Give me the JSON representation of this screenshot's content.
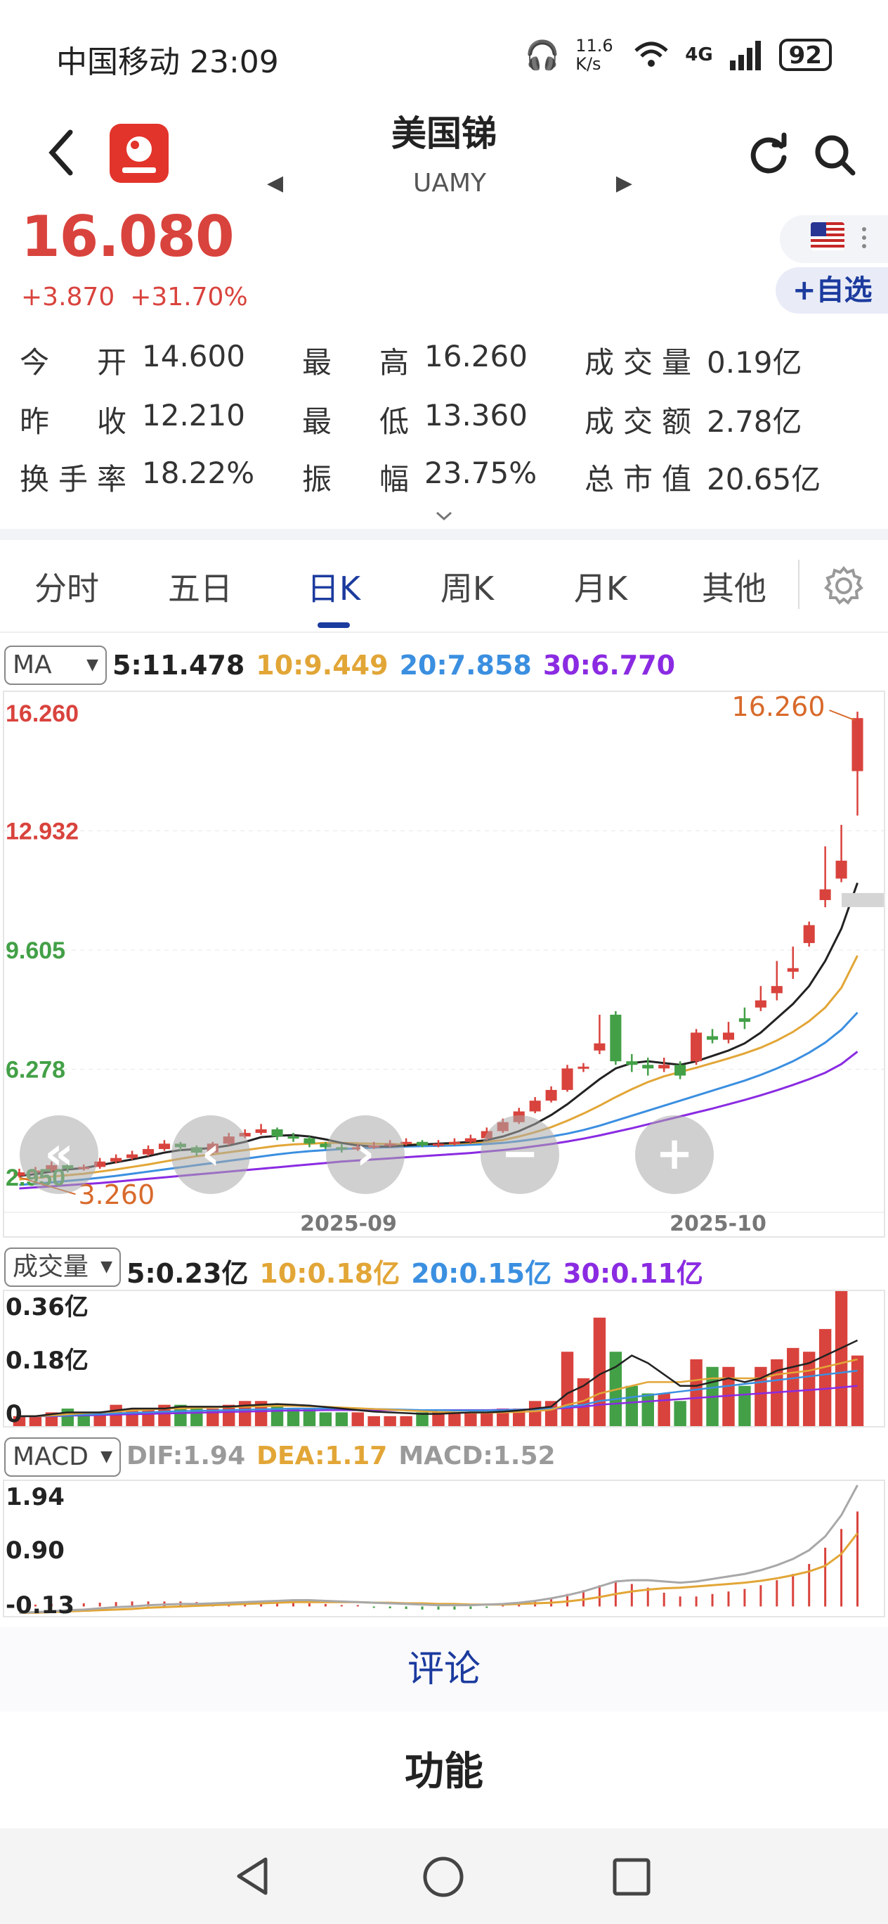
{
  "status_bar": {
    "carrier_time": "中国移动 23:09",
    "speed": "11.6 K/s",
    "network": "4G",
    "battery": "92"
  },
  "header": {
    "title": "美国锑",
    "ticker": "UAMY"
  },
  "price": {
    "last": "16.080",
    "change": "+3.870",
    "change_pct": "+31.70%",
    "watchlist_label": "+自选"
  },
  "quote": [
    [
      {
        "label": "今开",
        "value": "14.600"
      },
      {
        "label": "最高",
        "value": "16.260"
      },
      {
        "label": "成交量",
        "value": "0.19亿"
      }
    ],
    [
      {
        "label": "昨收",
        "value": "12.210"
      },
      {
        "label": "最低",
        "value": "13.360"
      },
      {
        "label": "成交额",
        "value": "2.78亿"
      }
    ],
    [
      {
        "label": "换手率",
        "value": "18.22%"
      },
      {
        "label": "振幅",
        "value": "23.75%"
      },
      {
        "label": "总市值",
        "value": "20.65亿"
      }
    ]
  ],
  "tabs": [
    "分时",
    "五日",
    "日K",
    "周K",
    "月K",
    "其他"
  ],
  "active_tab": "日K",
  "ma_legend": {
    "select": "MA",
    "ma5": "5:11.478",
    "ma10": "10:9.449",
    "ma20": "20:7.858",
    "ma30": "30:6.770"
  },
  "main_axis": {
    "y_labels": [
      "16.260",
      "12.932",
      "9.605",
      "6.278",
      "2.950"
    ],
    "x_labels": [
      "2025-09",
      "2025-10"
    ],
    "high_marker": "16.260",
    "low_marker": "3.260"
  },
  "volume_legend": {
    "select": "成交量",
    "ma5": "5:0.23亿",
    "ma10": "10:0.18亿",
    "ma20": "20:0.15亿",
    "ma30": "30:0.11亿"
  },
  "volume_axis": [
    "0.36亿",
    "0.18亿",
    "0"
  ],
  "macd_legend": {
    "select": "MACD",
    "dif": "DIF:1.94",
    "dea": "DEA:1.17",
    "macd": "MACD:1.52"
  },
  "macd_axis": [
    "1.94",
    "0.90",
    "-0.13"
  ],
  "footer": {
    "comment": "评论",
    "function": "功能"
  },
  "colors": {
    "up": "#d9433d",
    "down": "#43a047",
    "ma5": "#222222",
    "ma10": "#e2a637",
    "ma20": "#3b8fe0",
    "ma30": "#8a2be2",
    "accent": "#1c3b9e"
  },
  "chart_data": {
    "type": "candlestick",
    "ylim": [
      2.95,
      16.26
    ],
    "candles": [
      {
        "o": 3.3,
        "c": 3.4,
        "h": 3.5,
        "l": 3.26
      },
      {
        "o": 3.4,
        "c": 3.45,
        "h": 3.55,
        "l": 3.3
      },
      {
        "o": 3.45,
        "c": 3.6,
        "h": 3.7,
        "l": 3.4
      },
      {
        "o": 3.6,
        "c": 3.5,
        "h": 3.65,
        "l": 3.4
      },
      {
        "o": 3.5,
        "c": 3.55,
        "h": 3.62,
        "l": 3.45
      },
      {
        "o": 3.55,
        "c": 3.7,
        "h": 3.8,
        "l": 3.5
      },
      {
        "o": 3.7,
        "c": 3.8,
        "h": 3.9,
        "l": 3.65
      },
      {
        "o": 3.8,
        "c": 3.9,
        "h": 4.0,
        "l": 3.75
      },
      {
        "o": 3.9,
        "c": 4.05,
        "h": 4.15,
        "l": 3.85
      },
      {
        "o": 4.05,
        "c": 4.2,
        "h": 4.3,
        "l": 4.0
      },
      {
        "o": 4.2,
        "c": 4.1,
        "h": 4.25,
        "l": 4.0
      },
      {
        "o": 4.1,
        "c": 3.95,
        "h": 4.15,
        "l": 3.85
      },
      {
        "o": 3.95,
        "c": 4.2,
        "h": 4.25,
        "l": 3.9
      },
      {
        "o": 4.2,
        "c": 4.4,
        "h": 4.5,
        "l": 4.15
      },
      {
        "o": 4.4,
        "c": 4.5,
        "h": 4.6,
        "l": 4.35
      },
      {
        "o": 4.5,
        "c": 4.6,
        "h": 4.75,
        "l": 4.45
      },
      {
        "o": 4.6,
        "c": 4.4,
        "h": 4.65,
        "l": 4.3
      },
      {
        "o": 4.4,
        "c": 4.35,
        "h": 4.5,
        "l": 4.25
      },
      {
        "o": 4.35,
        "c": 4.2,
        "h": 4.4,
        "l": 4.1
      },
      {
        "o": 4.2,
        "c": 4.1,
        "h": 4.25,
        "l": 4.05
      },
      {
        "o": 4.1,
        "c": 4.05,
        "h": 4.2,
        "l": 3.95
      },
      {
        "o": 4.05,
        "c": 4.1,
        "h": 4.2,
        "l": 4.0
      },
      {
        "o": 4.1,
        "c": 4.15,
        "h": 4.25,
        "l": 4.05
      },
      {
        "o": 4.15,
        "c": 4.2,
        "h": 4.3,
        "l": 4.1
      },
      {
        "o": 4.2,
        "c": 4.25,
        "h": 4.35,
        "l": 4.15
      },
      {
        "o": 4.25,
        "c": 4.15,
        "h": 4.3,
        "l": 4.1
      },
      {
        "o": 4.15,
        "c": 4.2,
        "h": 4.3,
        "l": 4.1
      },
      {
        "o": 4.2,
        "c": 4.25,
        "h": 4.35,
        "l": 4.15
      },
      {
        "o": 4.25,
        "c": 4.35,
        "h": 4.45,
        "l": 4.2
      },
      {
        "o": 4.35,
        "c": 4.55,
        "h": 4.65,
        "l": 4.3
      },
      {
        "o": 4.55,
        "c": 4.8,
        "h": 4.9,
        "l": 4.5
      },
      {
        "o": 4.8,
        "c": 5.1,
        "h": 5.2,
        "l": 4.75
      },
      {
        "o": 5.1,
        "c": 5.4,
        "h": 5.5,
        "l": 5.05
      },
      {
        "o": 5.4,
        "c": 5.7,
        "h": 5.8,
        "l": 5.35
      },
      {
        "o": 5.7,
        "c": 6.3,
        "h": 6.4,
        "l": 5.65
      },
      {
        "o": 6.3,
        "c": 6.35,
        "h": 6.45,
        "l": 6.2
      },
      {
        "o": 6.8,
        "c": 7.0,
        "h": 7.8,
        "l": 6.7
      },
      {
        "o": 7.8,
        "c": 6.5,
        "h": 7.9,
        "l": 6.4
      },
      {
        "o": 6.5,
        "c": 6.4,
        "h": 6.7,
        "l": 6.2
      },
      {
        "o": 6.4,
        "c": 6.3,
        "h": 6.6,
        "l": 6.1
      },
      {
        "o": 6.3,
        "c": 6.4,
        "h": 6.6,
        "l": 6.2
      },
      {
        "o": 6.4,
        "c": 6.1,
        "h": 6.5,
        "l": 6.0
      },
      {
        "o": 6.5,
        "c": 7.3,
        "h": 7.4,
        "l": 6.4
      },
      {
        "o": 7.2,
        "c": 7.1,
        "h": 7.4,
        "l": 7.0
      },
      {
        "o": 7.1,
        "c": 7.3,
        "h": 7.6,
        "l": 7.0
      },
      {
        "o": 7.7,
        "c": 7.6,
        "h": 8.0,
        "l": 7.4
      },
      {
        "o": 8.0,
        "c": 8.2,
        "h": 8.6,
        "l": 7.9
      },
      {
        "o": 8.4,
        "c": 8.6,
        "h": 9.3,
        "l": 8.2
      },
      {
        "o": 9.0,
        "c": 9.1,
        "h": 9.7,
        "l": 8.8
      },
      {
        "o": 9.8,
        "c": 10.3,
        "h": 10.4,
        "l": 9.7
      },
      {
        "o": 11.0,
        "c": 11.3,
        "h": 12.5,
        "l": 10.8
      },
      {
        "o": 11.6,
        "c": 12.1,
        "h": 13.1,
        "l": 11.5
      },
      {
        "o": 14.6,
        "c": 16.08,
        "h": 16.26,
        "l": 13.36
      }
    ],
    "ma5": [
      3.3,
      3.35,
      3.42,
      3.48,
      3.52,
      3.6,
      3.68,
      3.76,
      3.85,
      3.95,
      4.02,
      4.05,
      4.08,
      4.15,
      4.25,
      4.38,
      4.42,
      4.44,
      4.4,
      4.32,
      4.22,
      4.15,
      4.12,
      4.12,
      4.15,
      4.18,
      4.2,
      4.22,
      4.25,
      4.3,
      4.4,
      4.55,
      4.75,
      5.0,
      5.3,
      5.65,
      6.0,
      6.3,
      6.45,
      6.5,
      6.45,
      6.4,
      6.5,
      6.65,
      6.8,
      7.0,
      7.3,
      7.7,
      8.1,
      8.6,
      9.3,
      10.2,
      11.48
    ],
    "ma10": [
      3.2,
      3.24,
      3.28,
      3.32,
      3.36,
      3.42,
      3.48,
      3.55,
      3.62,
      3.7,
      3.78,
      3.85,
      3.9,
      3.96,
      4.02,
      4.08,
      4.14,
      4.18,
      4.2,
      4.22,
      4.22,
      4.21,
      4.2,
      4.19,
      4.18,
      4.18,
      4.19,
      4.2,
      4.22,
      4.25,
      4.3,
      4.4,
      4.52,
      4.66,
      4.84,
      5.04,
      5.26,
      5.5,
      5.72,
      5.92,
      6.08,
      6.2,
      6.32,
      6.45,
      6.58,
      6.72,
      6.88,
      7.08,
      7.32,
      7.62,
      8.0,
      8.55,
      9.45
    ],
    "ma20": [
      3.05,
      3.08,
      3.12,
      3.16,
      3.2,
      3.25,
      3.3,
      3.36,
      3.42,
      3.48,
      3.54,
      3.6,
      3.66,
      3.72,
      3.78,
      3.84,
      3.9,
      3.95,
      3.99,
      4.02,
      4.05,
      4.07,
      4.09,
      4.1,
      4.12,
      4.13,
      4.14,
      4.15,
      4.17,
      4.19,
      4.22,
      4.27,
      4.33,
      4.4,
      4.48,
      4.58,
      4.7,
      4.84,
      4.98,
      5.12,
      5.26,
      5.4,
      5.54,
      5.68,
      5.82,
      5.96,
      6.12,
      6.3,
      6.5,
      6.74,
      7.02,
      7.38,
      7.86
    ],
    "ma30": [
      2.95,
      2.98,
      3.01,
      3.04,
      3.07,
      3.1,
      3.14,
      3.18,
      3.22,
      3.26,
      3.3,
      3.34,
      3.38,
      3.42,
      3.46,
      3.5,
      3.54,
      3.58,
      3.62,
      3.66,
      3.7,
      3.73,
      3.76,
      3.79,
      3.82,
      3.85,
      3.88,
      3.91,
      3.94,
      3.98,
      4.02,
      4.07,
      4.13,
      4.19,
      4.26,
      4.34,
      4.43,
      4.53,
      4.63,
      4.74,
      4.85,
      4.96,
      5.07,
      5.18,
      5.3,
      5.42,
      5.55,
      5.69,
      5.84,
      6.0,
      6.18,
      6.42,
      6.77
    ],
    "volume": {
      "ylim": [
        0,
        0.36
      ],
      "values": [
        0.03,
        0.03,
        0.04,
        0.05,
        0.04,
        0.04,
        0.06,
        0.05,
        0.05,
        0.06,
        0.06,
        0.05,
        0.05,
        0.06,
        0.07,
        0.07,
        0.06,
        0.05,
        0.05,
        0.04,
        0.04,
        0.04,
        0.03,
        0.03,
        0.03,
        0.04,
        0.04,
        0.04,
        0.04,
        0.04,
        0.05,
        0.05,
        0.07,
        0.07,
        0.2,
        0.13,
        0.29,
        0.2,
        0.11,
        0.09,
        0.09,
        0.07,
        0.18,
        0.16,
        0.16,
        0.11,
        0.16,
        0.18,
        0.21,
        0.2,
        0.26,
        0.36,
        0.19
      ],
      "up": [
        true,
        true,
        true,
        false,
        false,
        true,
        true,
        true,
        true,
        true,
        false,
        false,
        true,
        true,
        true,
        true,
        false,
        false,
        false,
        false,
        false,
        true,
        true,
        true,
        true,
        false,
        true,
        true,
        true,
        true,
        true,
        true,
        true,
        true,
        true,
        true,
        true,
        false,
        false,
        false,
        true,
        false,
        true,
        false,
        true,
        false,
        true,
        true,
        true,
        true,
        true,
        true,
        true
      ],
      "ma5": [
        0.03,
        0.03,
        0.035,
        0.04,
        0.04,
        0.04,
        0.045,
        0.05,
        0.05,
        0.05,
        0.055,
        0.055,
        0.055,
        0.055,
        0.058,
        0.06,
        0.062,
        0.06,
        0.058,
        0.054,
        0.05,
        0.046,
        0.042,
        0.04,
        0.038,
        0.036,
        0.036,
        0.038,
        0.04,
        0.04,
        0.042,
        0.045,
        0.05,
        0.055,
        0.09,
        0.11,
        0.14,
        0.16,
        0.19,
        0.17,
        0.14,
        0.11,
        0.11,
        0.12,
        0.13,
        0.12,
        0.13,
        0.15,
        0.16,
        0.17,
        0.19,
        0.21,
        0.23
      ],
      "ma10": [
        0.03,
        0.03,
        0.032,
        0.035,
        0.038,
        0.04,
        0.042,
        0.045,
        0.047,
        0.05,
        0.05,
        0.052,
        0.053,
        0.054,
        0.055,
        0.056,
        0.057,
        0.057,
        0.056,
        0.055,
        0.053,
        0.051,
        0.049,
        0.047,
        0.045,
        0.043,
        0.041,
        0.04,
        0.039,
        0.039,
        0.04,
        0.041,
        0.043,
        0.047,
        0.06,
        0.07,
        0.09,
        0.1,
        0.11,
        0.12,
        0.12,
        0.12,
        0.125,
        0.13,
        0.13,
        0.13,
        0.13,
        0.14,
        0.145,
        0.15,
        0.16,
        0.17,
        0.18
      ],
      "ma20": [
        0.03,
        0.03,
        0.031,
        0.032,
        0.034,
        0.035,
        0.037,
        0.039,
        0.04,
        0.042,
        0.043,
        0.044,
        0.045,
        0.046,
        0.047,
        0.048,
        0.049,
        0.05,
        0.05,
        0.05,
        0.05,
        0.05,
        0.049,
        0.048,
        0.047,
        0.046,
        0.046,
        0.045,
        0.045,
        0.045,
        0.046,
        0.047,
        0.048,
        0.05,
        0.055,
        0.06,
        0.07,
        0.075,
        0.08,
        0.085,
        0.09,
        0.095,
        0.1,
        0.105,
        0.11,
        0.115,
        0.12,
        0.125,
        0.13,
        0.135,
        0.14,
        0.145,
        0.15
      ],
      "ma30": [
        0.03,
        0.03,
        0.03,
        0.031,
        0.032,
        0.033,
        0.034,
        0.035,
        0.036,
        0.037,
        0.038,
        0.039,
        0.04,
        0.041,
        0.042,
        0.043,
        0.044,
        0.045,
        0.045,
        0.046,
        0.046,
        0.046,
        0.046,
        0.046,
        0.046,
        0.046,
        0.046,
        0.046,
        0.046,
        0.046,
        0.047,
        0.047,
        0.048,
        0.049,
        0.052,
        0.055,
        0.06,
        0.063,
        0.066,
        0.069,
        0.072,
        0.075,
        0.078,
        0.081,
        0.084,
        0.087,
        0.09,
        0.093,
        0.096,
        0.099,
        0.102,
        0.106,
        0.11
      ]
    },
    "macd": {
      "ylim": [
        -0.13,
        1.94
      ],
      "dif": [
        -0.1,
        -0.09,
        -0.08,
        -0.06,
        -0.05,
        -0.03,
        -0.01,
        0.0,
        0.02,
        0.03,
        0.04,
        0.04,
        0.05,
        0.06,
        0.07,
        0.08,
        0.09,
        0.1,
        0.1,
        0.09,
        0.08,
        0.07,
        0.06,
        0.05,
        0.04,
        0.03,
        0.02,
        0.02,
        0.02,
        0.03,
        0.04,
        0.06,
        0.09,
        0.13,
        0.18,
        0.24,
        0.32,
        0.4,
        0.42,
        0.42,
        0.4,
        0.38,
        0.4,
        0.44,
        0.48,
        0.52,
        0.58,
        0.66,
        0.76,
        0.9,
        1.12,
        1.46,
        1.94
      ],
      "dea": [
        -0.1,
        -0.1,
        -0.09,
        -0.08,
        -0.07,
        -0.06,
        -0.05,
        -0.04,
        -0.02,
        -0.01,
        0.0,
        0.01,
        0.02,
        0.03,
        0.04,
        0.05,
        0.06,
        0.07,
        0.07,
        0.07,
        0.07,
        0.07,
        0.06,
        0.06,
        0.05,
        0.05,
        0.04,
        0.04,
        0.03,
        0.03,
        0.03,
        0.04,
        0.05,
        0.06,
        0.08,
        0.11,
        0.15,
        0.2,
        0.24,
        0.27,
        0.29,
        0.3,
        0.32,
        0.34,
        0.36,
        0.38,
        0.41,
        0.45,
        0.5,
        0.56,
        0.65,
        0.84,
        1.17
      ],
      "hist": [
        0.02,
        0.03,
        0.04,
        0.05,
        0.05,
        0.06,
        0.07,
        0.08,
        0.08,
        0.08,
        0.08,
        0.07,
        0.06,
        0.06,
        0.06,
        0.06,
        0.06,
        0.06,
        0.05,
        0.04,
        0.02,
        0.0,
        -0.02,
        -0.03,
        -0.04,
        -0.05,
        -0.05,
        -0.05,
        -0.04,
        -0.02,
        0.01,
        0.04,
        0.08,
        0.14,
        0.2,
        0.26,
        0.34,
        0.4,
        0.36,
        0.3,
        0.22,
        0.16,
        0.16,
        0.2,
        0.24,
        0.28,
        0.34,
        0.42,
        0.52,
        0.68,
        0.94,
        1.24,
        1.52
      ]
    }
  }
}
